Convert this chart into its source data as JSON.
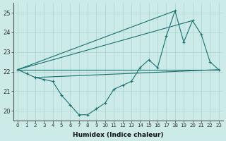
{
  "xlabel": "Humidex (Indice chaleur)",
  "xlim": [
    -0.5,
    23.5
  ],
  "ylim": [
    19.5,
    25.5
  ],
  "yticks": [
    20,
    21,
    22,
    23,
    24,
    25
  ],
  "xticks": [
    0,
    1,
    2,
    3,
    4,
    5,
    6,
    7,
    8,
    9,
    10,
    11,
    12,
    13,
    14,
    15,
    16,
    17,
    18,
    19,
    20,
    21,
    22,
    23
  ],
  "background_color": "#cceae7",
  "grid_color": "#aad4d0",
  "line_color": "#1a7070",
  "main_series": [
    22.1,
    21.9,
    21.7,
    21.6,
    21.5,
    20.8,
    20.3,
    19.8,
    19.8,
    20.1,
    20.4,
    21.1,
    21.3,
    21.5,
    22.2,
    22.6,
    22.2,
    23.8,
    25.1,
    23.5,
    24.6,
    23.9,
    22.5,
    22.1
  ],
  "straight_lines": [
    {
      "x": [
        0,
        18
      ],
      "y": [
        22.1,
        25.1
      ]
    },
    {
      "x": [
        0,
        20
      ],
      "y": [
        22.1,
        24.6
      ]
    },
    {
      "x": [
        0,
        23
      ],
      "y": [
        22.1,
        22.1
      ]
    },
    {
      "x": [
        2,
        23
      ],
      "y": [
        21.7,
        22.1
      ]
    }
  ]
}
